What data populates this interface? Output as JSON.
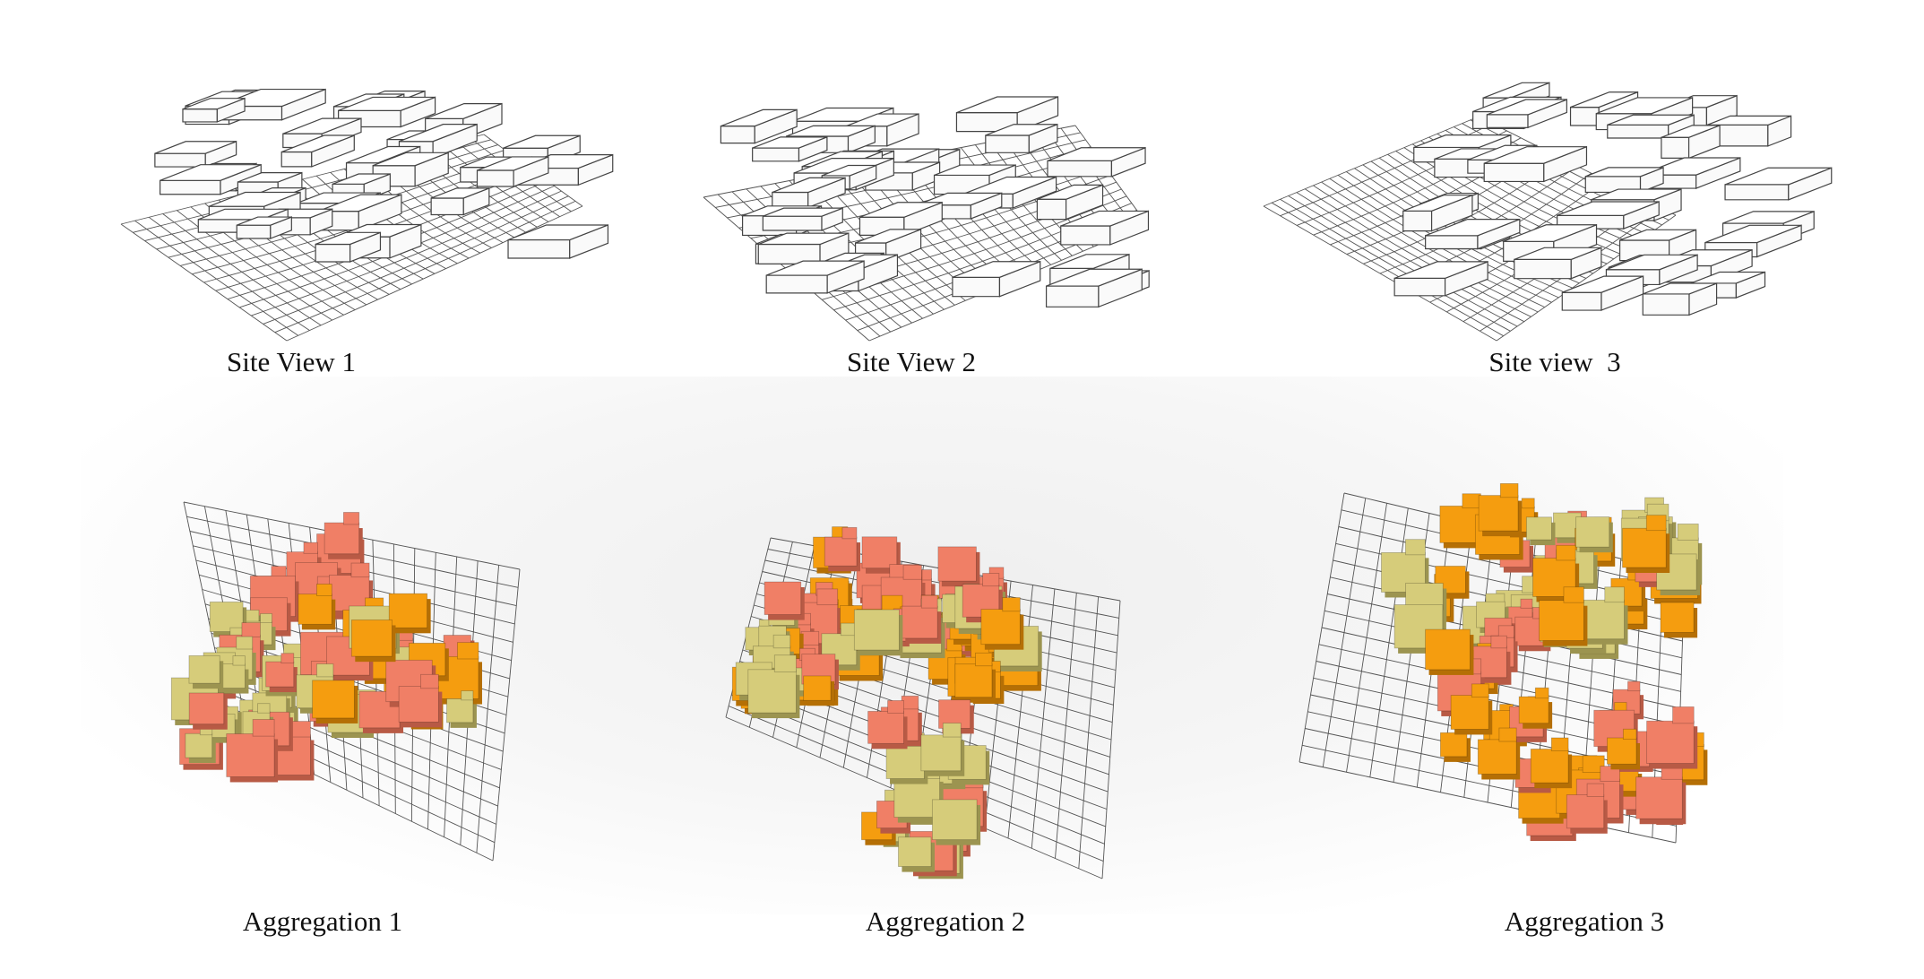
{
  "site_views": [
    {
      "label": "Site View 1"
    },
    {
      "label": "Site View 2"
    },
    {
      "label": "Site view  3"
    }
  ],
  "aggregations": [
    {
      "label": "Aggregation 1"
    },
    {
      "label": "Aggregation 2"
    },
    {
      "label": "Aggregation 3"
    }
  ],
  "colors": {
    "salmon": "#f07f66",
    "orange": "#f59d0f",
    "khaki": "#d6cc7a",
    "mesh": "#555555"
  }
}
